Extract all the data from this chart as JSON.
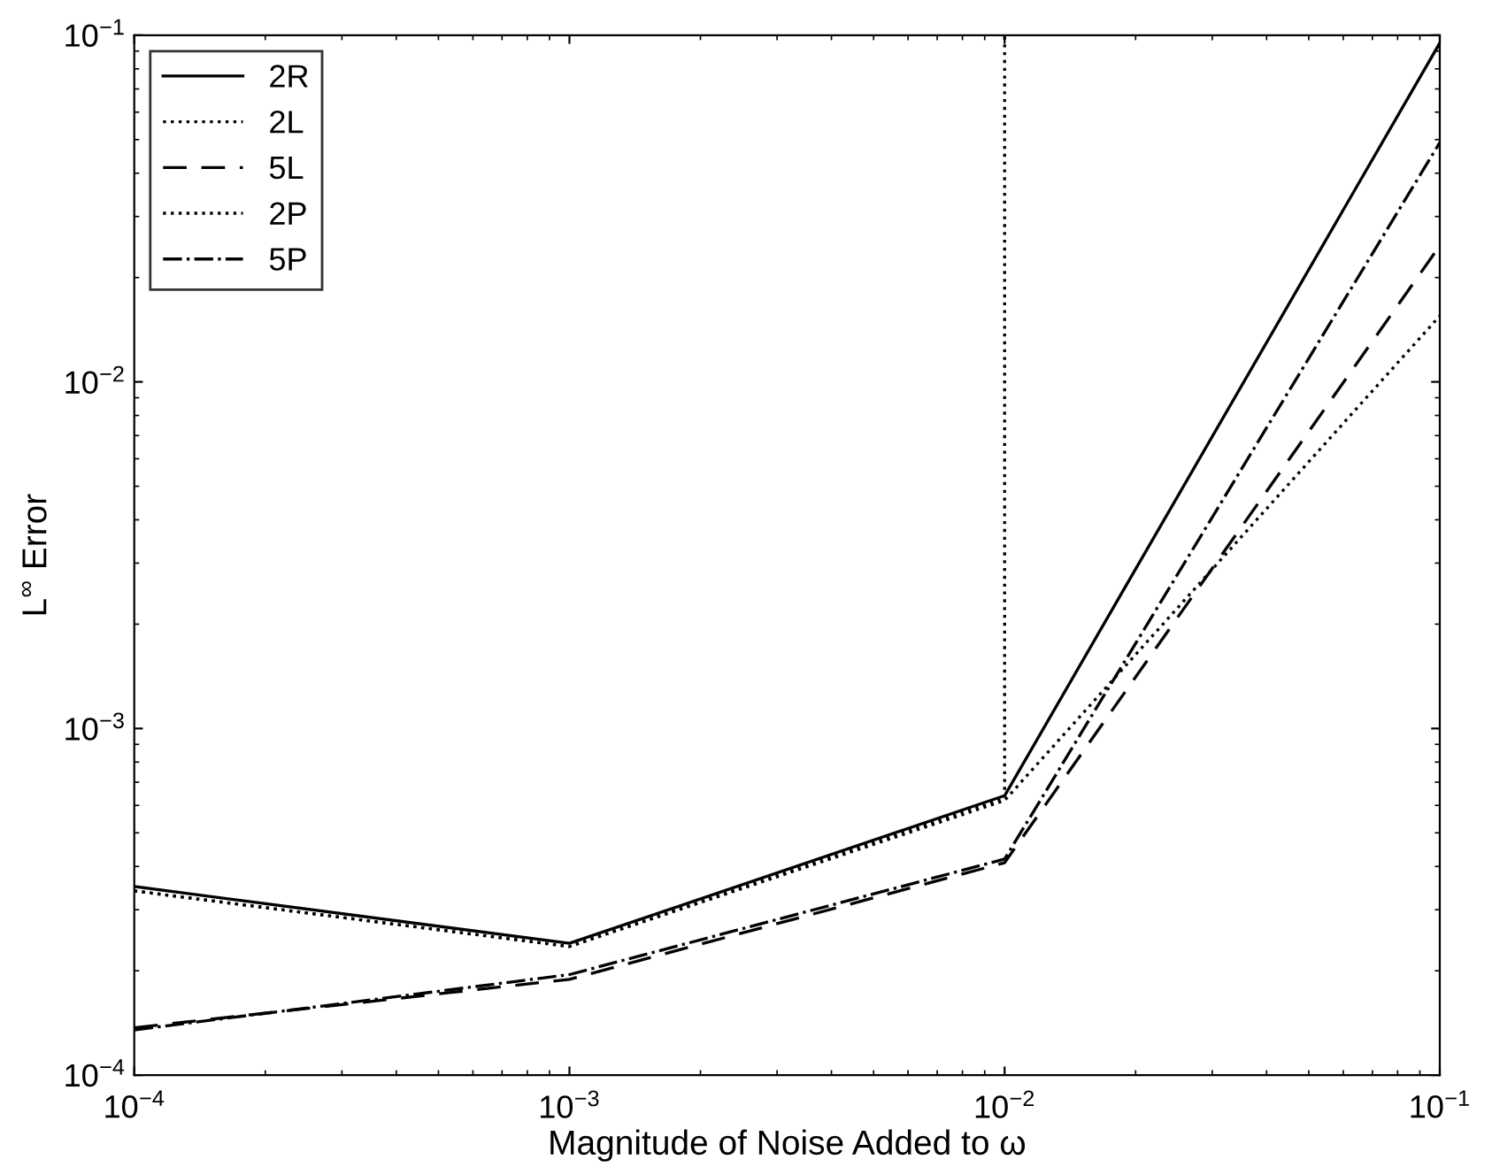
{
  "chart_data": {
    "type": "line",
    "xlabel": "Magnitude of Noise Added to ω",
    "ylabel": "L$^{∞}$ Error",
    "x": [
      0.0001,
      0.001,
      0.01,
      0.1
    ],
    "series": [
      {
        "name": "2R",
        "color": "#000000",
        "line_style": "solid",
        "values": [
          0.00035,
          0.00024,
          0.00064,
          0.095
        ]
      },
      {
        "name": "2L",
        "color": "#000000",
        "line_style": "dotted",
        "values": [
          0.00034,
          0.000235,
          0.00062,
          0.0155
        ]
      },
      {
        "name": "5L",
        "color": "#000000",
        "line_style": "dashed",
        "values": [
          0.000137,
          0.000189,
          0.00041,
          0.0247
        ]
      },
      {
        "name": "2P",
        "color": "#000000",
        "line_style": "dotted",
        "x": [
          0.0001,
          0.001,
          0.01,
          0.01
        ],
        "values": [
          0.00034,
          0.000235,
          0.00063,
          0.1
        ]
      },
      {
        "name": "5P",
        "color": "#000000",
        "line_style": "dashdot",
        "values": [
          0.000135,
          0.000195,
          0.00042,
          0.049
        ]
      }
    ],
    "log": "xy",
    "xlim": [
      0.0001,
      0.1
    ],
    "ylim": [
      0.0001,
      0.1
    ],
    "xticks": [
      {
        "value": 0.0001,
        "label": "10$^{−4}$"
      },
      {
        "value": 0.001,
        "label": "10$^{−3}$"
      },
      {
        "value": 0.01,
        "label": "10$^{−2}$"
      },
      {
        "value": 0.1,
        "label": "10$^{−1}$"
      }
    ],
    "yticks": [
      {
        "value": 0.0001,
        "label": "10$^{−4}$"
      },
      {
        "value": 0.001,
        "label": "10$^{−3}$"
      },
      {
        "value": 0.01,
        "label": "10$^{−2}$"
      },
      {
        "value": 0.1,
        "label": "10$^{−1}$"
      }
    ],
    "grid": false,
    "legend": "top left",
    "marker": "none"
  }
}
